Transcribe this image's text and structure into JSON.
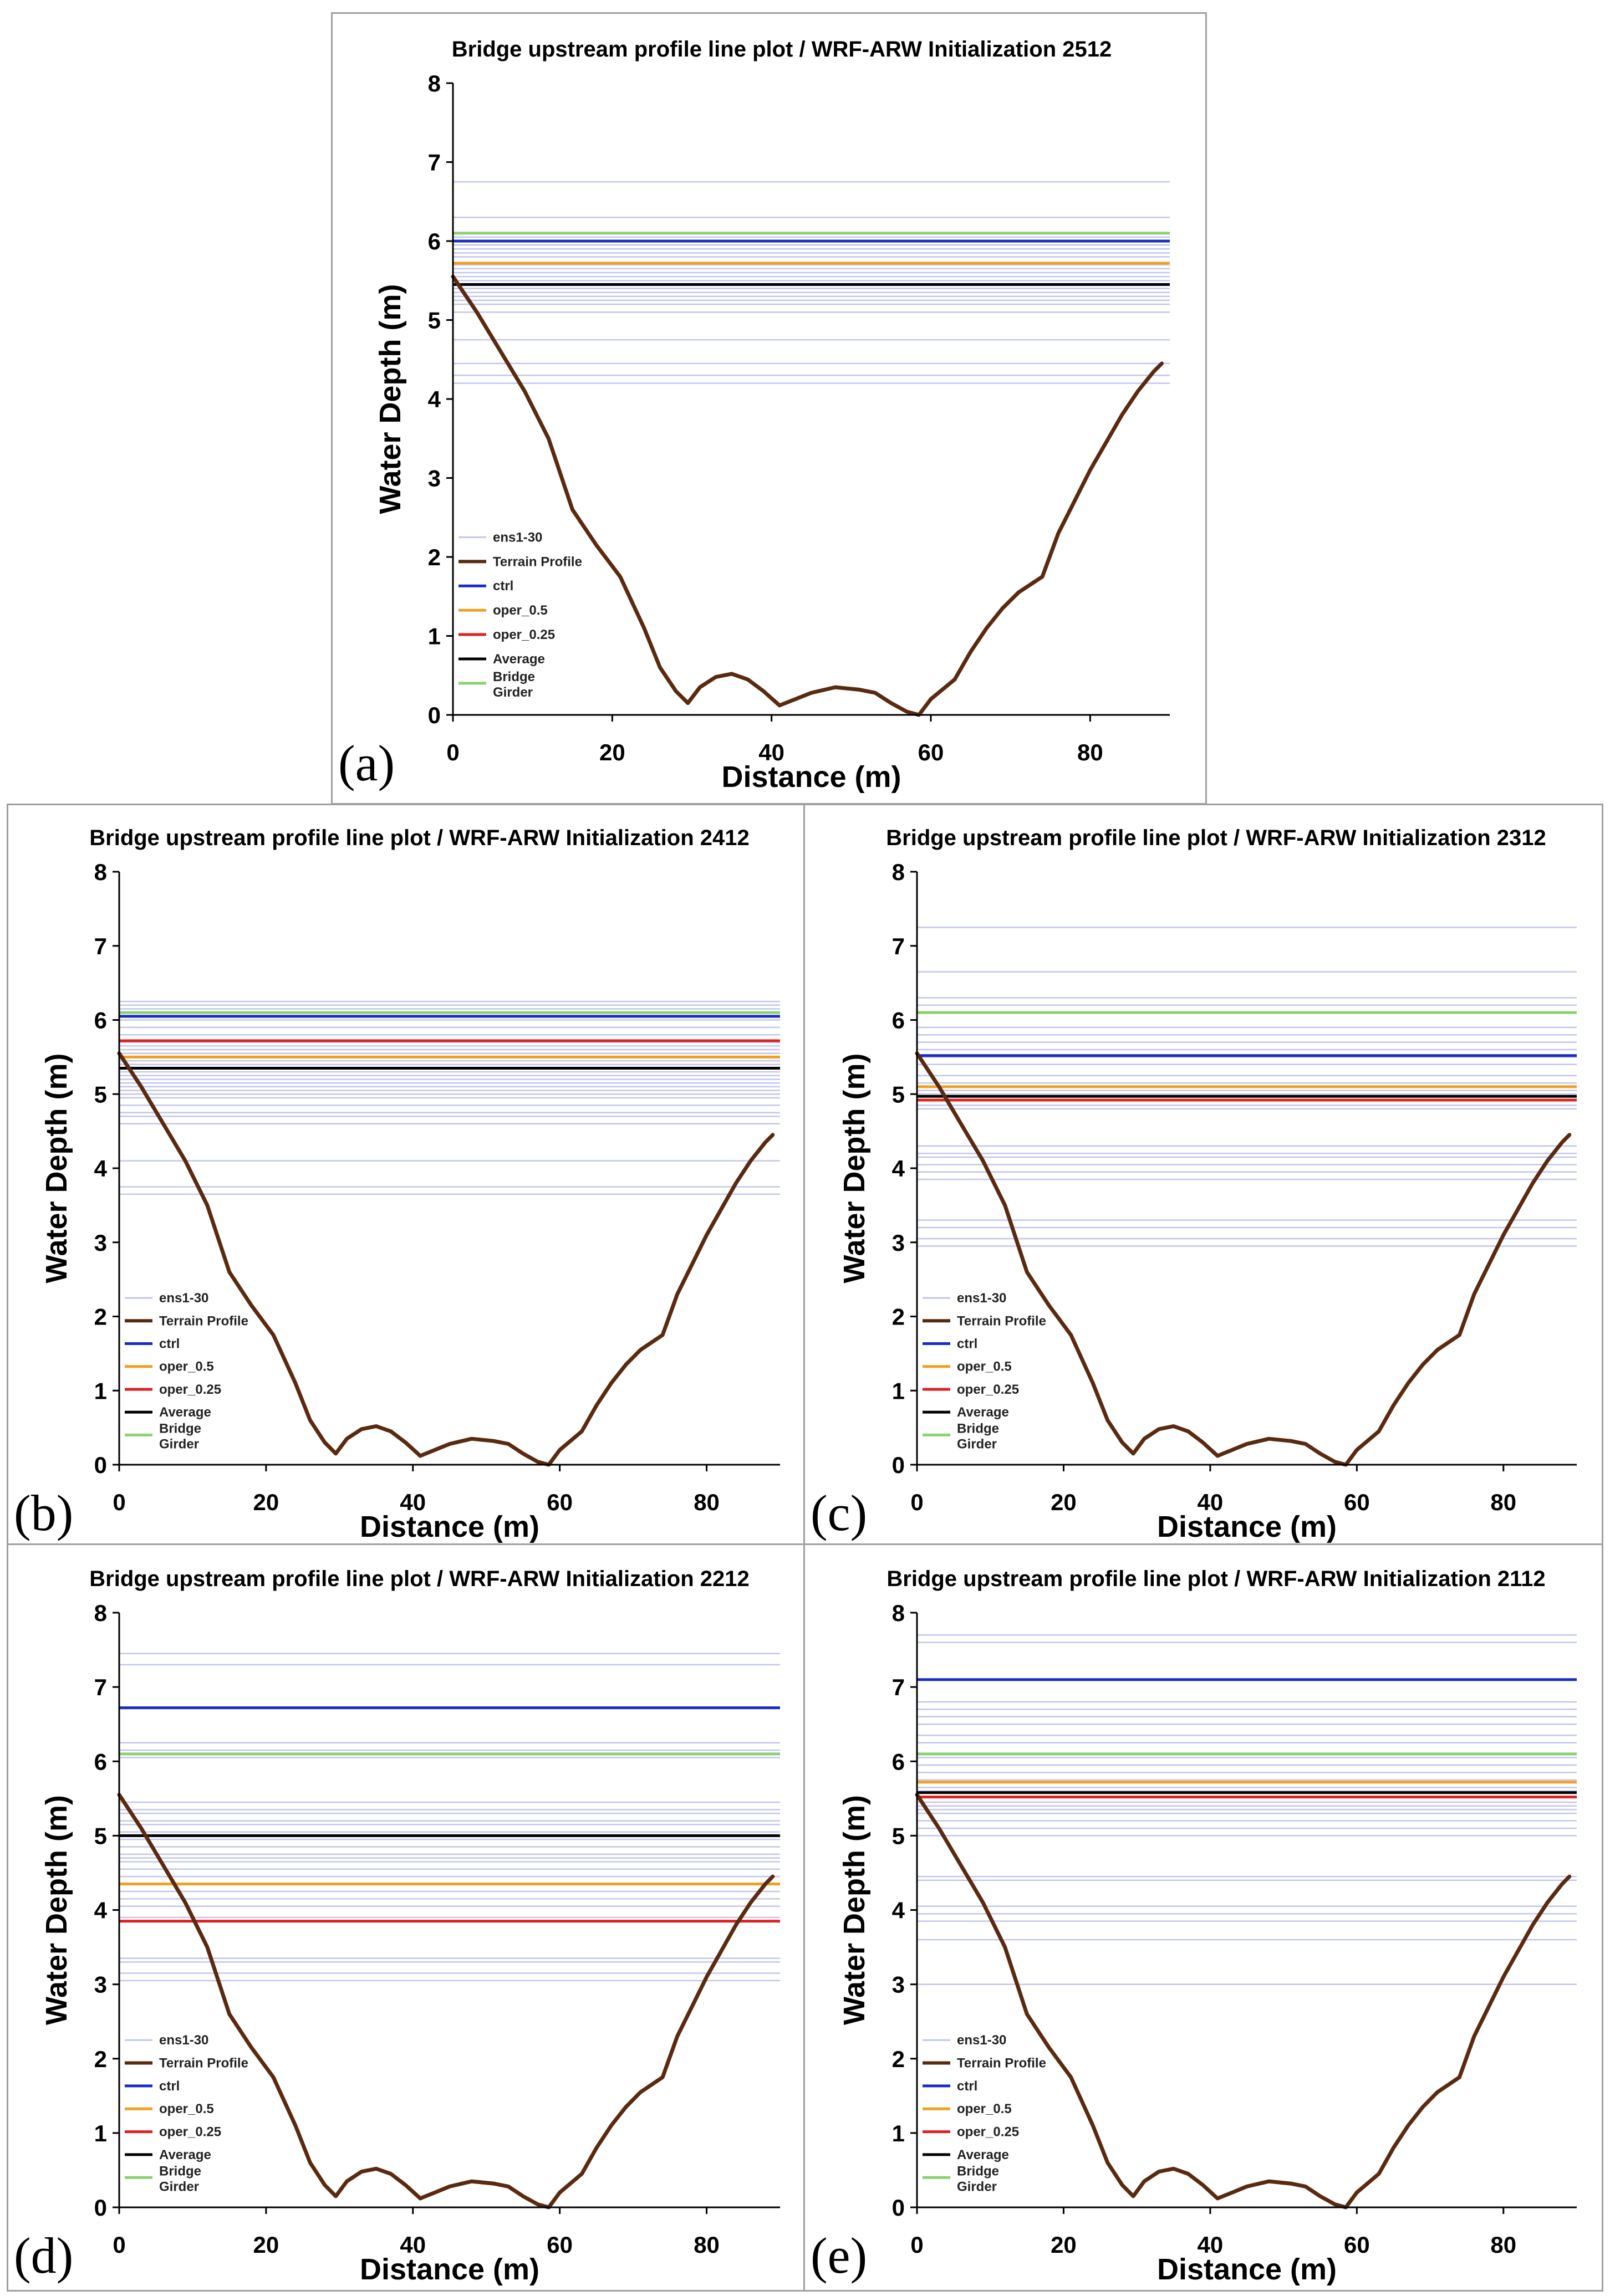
{
  "colors": {
    "ensemble": "#c2c6ee",
    "terrain": "#5a2a10",
    "ctrl": "#1a2cc0",
    "oper_05": "#f0a020",
    "oper_025": "#e02020",
    "average": "#000000",
    "bridge_girder": "#8cd070",
    "axis": "#000000"
  },
  "legend_labels": {
    "ensemble": "ens1-30",
    "terrain": "Terrain Profile",
    "ctrl": "ctrl",
    "oper_05": "oper_0.5",
    "oper_025": "oper_0.25",
    "average": "Average",
    "bridge_girder": "Bridge Girder"
  },
  "chart_data": [
    {
      "panel_label": "(a)",
      "type": "line",
      "title": "Bridge upstream profile line plot / WRF-ARW Initialization 2512",
      "xlabel": "Distance (m)",
      "ylabel": "Water Depth (m)",
      "xlim": [
        0,
        90
      ],
      "ylim": [
        0,
        8
      ],
      "xticks": [
        0,
        20,
        40,
        60,
        80
      ],
      "yticks": [
        0,
        1,
        2,
        3,
        4,
        5,
        6,
        7,
        8
      ],
      "ensemble_levels": [
        4.2,
        4.3,
        4.45,
        4.75,
        5.1,
        5.2,
        5.25,
        5.3,
        5.35,
        5.4,
        5.5,
        5.55,
        5.6,
        5.65,
        5.7,
        5.8,
        5.85,
        5.9,
        5.95,
        6.0,
        6.05,
        6.1,
        6.3,
        6.75
      ],
      "ctrl": 6.0,
      "oper_05": 5.72,
      "oper_025": 6.0,
      "average": 5.45,
      "bridge_girder": 6.1
    },
    {
      "panel_label": "(b)",
      "type": "line",
      "title": "Bridge upstream profile line plot / WRF-ARW Initialization 2412",
      "xlabel": "Distance (m)",
      "ylabel": "Water Depth (m)",
      "xlim": [
        0,
        90
      ],
      "ylim": [
        0,
        8
      ],
      "xticks": [
        0,
        20,
        40,
        60,
        80
      ],
      "yticks": [
        0,
        1,
        2,
        3,
        4,
        5,
        6,
        7,
        8
      ],
      "ensemble_levels": [
        3.65,
        3.75,
        4.1,
        4.6,
        4.7,
        4.75,
        4.85,
        4.95,
        5.0,
        5.05,
        5.1,
        5.15,
        5.2,
        5.25,
        5.3,
        5.4,
        5.45,
        5.55,
        5.6,
        5.65,
        5.7,
        5.8,
        5.9,
        6.0,
        6.1,
        6.15,
        6.2,
        6.25
      ],
      "ctrl": 6.05,
      "oper_05": 5.5,
      "oper_025": 5.72,
      "average": 5.35,
      "bridge_girder": 6.1
    },
    {
      "panel_label": "(c)",
      "type": "line",
      "title": "Bridge upstream profile line plot / WRF-ARW Initialization 2312",
      "xlabel": "Distance (m)",
      "ylabel": "Water Depth (m)",
      "xlim": [
        0,
        90
      ],
      "ylim": [
        0,
        8
      ],
      "xticks": [
        0,
        20,
        40,
        60,
        80
      ],
      "yticks": [
        0,
        1,
        2,
        3,
        4,
        5,
        6,
        7,
        8
      ],
      "ensemble_levels": [
        2.95,
        3.05,
        3.2,
        3.3,
        3.85,
        3.95,
        4.05,
        4.15,
        4.2,
        4.3,
        4.8,
        4.85,
        5.0,
        5.05,
        5.15,
        5.25,
        5.4,
        5.5,
        5.6,
        5.7,
        5.8,
        5.9,
        6.2,
        6.3,
        6.65,
        7.25
      ],
      "ctrl": 5.52,
      "oper_05": 5.1,
      "oper_025": 4.92,
      "average": 4.97,
      "bridge_girder": 6.1
    },
    {
      "panel_label": "(d)",
      "type": "line",
      "title": "Bridge upstream profile line plot / WRF-ARW Initialization 2212",
      "xlabel": "Distance (m)",
      "ylabel": "Water Depth (m)",
      "xlim": [
        0,
        90
      ],
      "ylim": [
        0,
        8
      ],
      "xticks": [
        0,
        20,
        40,
        60,
        80
      ],
      "yticks": [
        0,
        1,
        2,
        3,
        4,
        5,
        6,
        7,
        8
      ],
      "ensemble_levels": [
        3.05,
        3.15,
        3.3,
        3.35,
        3.9,
        4.05,
        4.15,
        4.25,
        4.45,
        4.55,
        4.65,
        4.7,
        4.75,
        4.85,
        4.95,
        5.05,
        5.15,
        5.2,
        5.3,
        5.35,
        5.45,
        6.05,
        6.15,
        6.25,
        7.3,
        7.45
      ],
      "ctrl": 6.72,
      "oper_05": 4.35,
      "oper_025": 3.85,
      "average": 5.0,
      "bridge_girder": 6.1
    },
    {
      "panel_label": "(e)",
      "type": "line",
      "title": "Bridge upstream profile line plot / WRF-ARW Initialization 2112",
      "xlabel": "Distance (m)",
      "ylabel": "Water Depth (m)",
      "xlim": [
        0,
        90
      ],
      "ylim": [
        0,
        8
      ],
      "xticks": [
        0,
        20,
        40,
        60,
        80
      ],
      "yticks": [
        0,
        1,
        2,
        3,
        4,
        5,
        6,
        7,
        8
      ],
      "ensemble_levels": [
        3.0,
        3.6,
        3.85,
        3.95,
        4.05,
        4.4,
        4.45,
        5.0,
        5.1,
        5.2,
        5.3,
        5.35,
        5.4,
        5.45,
        5.6,
        5.65,
        5.75,
        5.85,
        5.95,
        6.05,
        6.25,
        6.35,
        6.5,
        6.6,
        6.7,
        6.8,
        7.6,
        7.7
      ],
      "ctrl": 7.1,
      "oper_05": 5.72,
      "oper_025": 5.52,
      "average": 5.58,
      "bridge_girder": 6.1
    }
  ],
  "terrain_profile": {
    "x": [
      0,
      3,
      6,
      9,
      12,
      15,
      18,
      21,
      24,
      26,
      28,
      29.5,
      31,
      33,
      35,
      37,
      39,
      41,
      43,
      45,
      48,
      51,
      53,
      55,
      57,
      58.5,
      60,
      63,
      65,
      67,
      69,
      71,
      74,
      76,
      78,
      80,
      82,
      84,
      86,
      88,
      89
    ],
    "y": [
      5.55,
      5.1,
      4.6,
      4.1,
      3.5,
      2.6,
      2.15,
      1.75,
      1.1,
      0.6,
      0.3,
      0.15,
      0.35,
      0.48,
      0.52,
      0.45,
      0.3,
      0.12,
      0.2,
      0.28,
      0.35,
      0.32,
      0.28,
      0.15,
      0.04,
      0.0,
      0.2,
      0.45,
      0.8,
      1.1,
      1.35,
      1.55,
      1.75,
      2.3,
      2.7,
      3.1,
      3.45,
      3.8,
      4.1,
      4.35,
      4.45
    ]
  }
}
